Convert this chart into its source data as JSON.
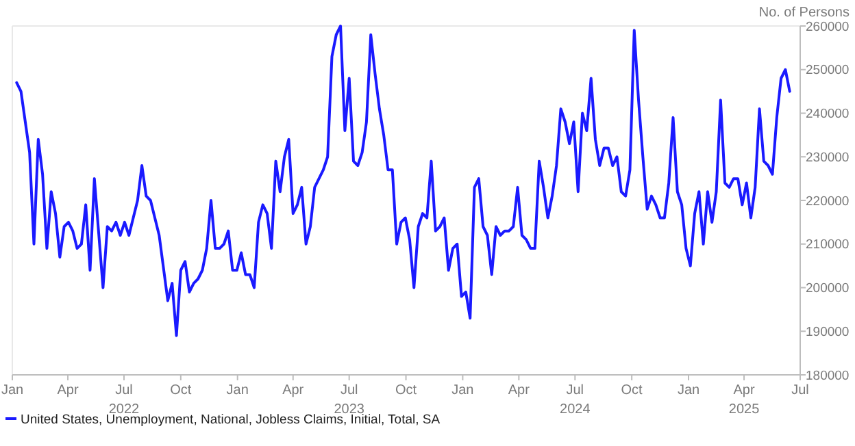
{
  "chart_data": {
    "type": "line",
    "ylabel": "No. of Persons",
    "legend": "bottom",
    "grid": false,
    "marker": "none",
    "line_style": "solid",
    "xlim": [
      "2022-01-01",
      "2025-07-01"
    ],
    "ylim": [
      180000,
      260000
    ],
    "yticks": [
      180000,
      190000,
      200000,
      210000,
      220000,
      230000,
      240000,
      250000,
      260000
    ],
    "xticks": [
      {
        "value": "2022-01-01",
        "label": "Jan"
      },
      {
        "value": "2022-04-01",
        "label": "Apr"
      },
      {
        "value": "2022-07-01",
        "label": "Jul 2022"
      },
      {
        "value": "2022-10-01",
        "label": "Oct"
      },
      {
        "value": "2023-01-01",
        "label": "Jan"
      },
      {
        "value": "2023-04-01",
        "label": "Apr"
      },
      {
        "value": "2023-07-01",
        "label": "Jul 2023"
      },
      {
        "value": "2023-10-01",
        "label": "Oct"
      },
      {
        "value": "2024-01-01",
        "label": "Jan"
      },
      {
        "value": "2024-04-01",
        "label": "Apr"
      },
      {
        "value": "2024-07-01",
        "label": "Jul 2024"
      },
      {
        "value": "2024-10-01",
        "label": "Oct"
      },
      {
        "value": "2025-01-01",
        "label": "Jan"
      },
      {
        "value": "2025-04-01",
        "label": "Apr 2025"
      },
      {
        "value": "2025-07-01",
        "label": "Jul"
      }
    ],
    "x": [
      "2022-01-08",
      "2022-01-15",
      "2022-01-29",
      "2022-02-05",
      "2022-02-12",
      "2022-02-19",
      "2022-02-26",
      "2022-03-05",
      "2022-03-12",
      "2022-03-19",
      "2022-03-26",
      "2022-04-02",
      "2022-04-09",
      "2022-04-16",
      "2022-04-23",
      "2022-04-30",
      "2022-05-07",
      "2022-05-14",
      "2022-05-28",
      "2022-06-04",
      "2022-06-11",
      "2022-06-18",
      "2022-06-25",
      "2022-07-02",
      "2022-07-09",
      "2022-07-23",
      "2022-07-30",
      "2022-08-06",
      "2022-08-13",
      "2022-08-27",
      "2022-09-10",
      "2022-09-17",
      "2022-09-24",
      "2022-10-01",
      "2022-10-08",
      "2022-10-15",
      "2022-10-22",
      "2022-10-29",
      "2022-11-05",
      "2022-11-12",
      "2022-11-19",
      "2022-11-26",
      "2022-12-03",
      "2022-12-10",
      "2022-12-17",
      "2022-12-24",
      "2022-12-31",
      "2023-01-07",
      "2023-01-14",
      "2023-01-21",
      "2023-01-28",
      "2023-02-04",
      "2023-02-11",
      "2023-02-18",
      "2023-02-25",
      "2023-03-04",
      "2023-03-11",
      "2023-03-18",
      "2023-03-25",
      "2023-04-01",
      "2023-04-08",
      "2023-04-15",
      "2023-04-22",
      "2023-04-29",
      "2023-05-06",
      "2023-05-13",
      "2023-05-20",
      "2023-05-27",
      "2023-06-03",
      "2023-06-10",
      "2023-06-17",
      "2023-06-24",
      "2023-07-01",
      "2023-07-08",
      "2023-07-15",
      "2023-07-22",
      "2023-07-29",
      "2023-08-05",
      "2023-08-12",
      "2023-08-19",
      "2023-08-26",
      "2023-09-02",
      "2023-09-09",
      "2023-09-16",
      "2023-09-23",
      "2023-09-30",
      "2023-10-07",
      "2023-10-14",
      "2023-10-21",
      "2023-10-28",
      "2023-11-04",
      "2023-11-11",
      "2023-11-18",
      "2023-11-25",
      "2023-12-02",
      "2023-12-09",
      "2023-12-16",
      "2023-12-23",
      "2023-12-30",
      "2024-01-06",
      "2024-01-13",
      "2024-01-20",
      "2024-01-27",
      "2024-02-03",
      "2024-02-10",
      "2024-02-17",
      "2024-02-24",
      "2024-03-02",
      "2024-03-09",
      "2024-03-16",
      "2024-03-23",
      "2024-03-30",
      "2024-04-06",
      "2024-04-13",
      "2024-04-20",
      "2024-04-27",
      "2024-05-04",
      "2024-05-11",
      "2024-05-18",
      "2024-05-25",
      "2024-06-01",
      "2024-06-08",
      "2024-06-15",
      "2024-06-22",
      "2024-06-29",
      "2024-07-06",
      "2024-07-13",
      "2024-07-20",
      "2024-07-27",
      "2024-08-03",
      "2024-08-10",
      "2024-08-17",
      "2024-08-24",
      "2024-08-31",
      "2024-09-07",
      "2024-09-14",
      "2024-09-21",
      "2024-09-28",
      "2024-10-05",
      "2024-10-12",
      "2024-10-19",
      "2024-10-26",
      "2024-11-02",
      "2024-11-09",
      "2024-11-16",
      "2024-11-23",
      "2024-11-30",
      "2024-12-07",
      "2024-12-14",
      "2024-12-21",
      "2024-12-28",
      "2025-01-04",
      "2025-01-11",
      "2025-01-18",
      "2025-01-25",
      "2025-02-01",
      "2025-02-08",
      "2025-02-15",
      "2025-02-22",
      "2025-03-01",
      "2025-03-08",
      "2025-03-15",
      "2025-03-22",
      "2025-03-29",
      "2025-04-05",
      "2025-04-12",
      "2025-04-19",
      "2025-04-26",
      "2025-05-03",
      "2025-05-10",
      "2025-05-17",
      "2025-05-24",
      "2025-05-31",
      "2025-06-07",
      "2025-06-14"
    ],
    "series": [
      {
        "name": "United States, Unemployment, National, Jobless Claims, Initial, Total, SA",
        "color": "#1a1aff",
        "values": [
          247000,
          245000,
          231000,
          210000,
          234000,
          226000,
          209000,
          222000,
          217000,
          207000,
          214000,
          215000,
          213000,
          209000,
          210000,
          219000,
          204000,
          225000,
          200000,
          214000,
          213000,
          215000,
          212000,
          215000,
          212000,
          220000,
          228000,
          221000,
          220000,
          212000,
          197000,
          201000,
          189000,
          204000,
          206000,
          199000,
          201000,
          202000,
          204000,
          209000,
          220000,
          209000,
          209000,
          210000,
          213000,
          204000,
          204000,
          208000,
          203000,
          203000,
          200000,
          215000,
          219000,
          217000,
          209000,
          229000,
          222000,
          230000,
          234000,
          217000,
          219000,
          223000,
          210000,
          214000,
          223000,
          225000,
          227000,
          230000,
          253000,
          258000,
          260000,
          236000,
          248000,
          229000,
          228000,
          231000,
          238000,
          258000,
          249000,
          241000,
          235000,
          227000,
          227000,
          210000,
          215000,
          216000,
          211000,
          200000,
          214000,
          217000,
          216000,
          229000,
          213000,
          214000,
          216000,
          204000,
          209000,
          210000,
          198000,
          199000,
          193000,
          223000,
          225000,
          214000,
          212000,
          203000,
          214000,
          212000,
          213000,
          213000,
          214000,
          223000,
          212000,
          211000,
          209000,
          209000,
          229000,
          223000,
          216000,
          221000,
          228000,
          241000,
          238000,
          233000,
          238000,
          222000,
          240000,
          236000,
          248000,
          234000,
          228000,
          232000,
          232000,
          228000,
          230000,
          222000,
          221000,
          227000,
          259000,
          243000,
          230000,
          218000,
          221000,
          219000,
          216000,
          216000,
          224000,
          239000,
          222000,
          219000,
          209000,
          205000,
          217000,
          222000,
          210000,
          222000,
          215000,
          222000,
          243000,
          224000,
          223000,
          225000,
          225000,
          219000,
          224000,
          216000,
          223000,
          241000,
          229000,
          228000,
          226000,
          239000,
          248000,
          250000,
          245000
        ]
      }
    ]
  }
}
